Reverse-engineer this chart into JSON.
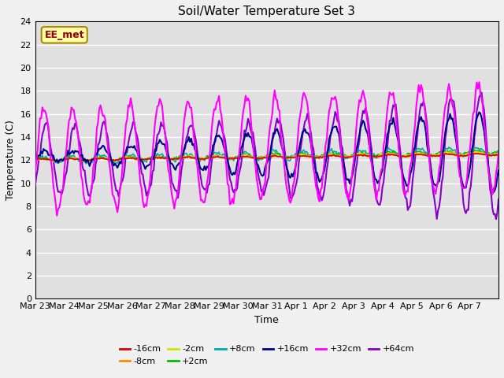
{
  "title": "Soil/Water Temperature Set 3",
  "xlabel": "Time",
  "ylabel": "Temperature (C)",
  "ylim": [
    0,
    24
  ],
  "yticks": [
    0,
    2,
    4,
    6,
    8,
    10,
    12,
    14,
    16,
    18,
    20,
    22,
    24
  ],
  "x_labels": [
    "Mar 23",
    "Mar 24",
    "Mar 25",
    "Mar 26",
    "Mar 27",
    "Mar 28",
    "Mar 29",
    "Mar 30",
    "Mar 31",
    "Apr 1",
    "Apr 2",
    "Apr 3",
    "Apr 4",
    "Apr 5",
    "Apr 6",
    "Apr 7"
  ],
  "annotation_text": "EE_met",
  "annotation_color": "#990000",
  "annotation_bg": "#ffffaa",
  "annotation_border": "#aa8800",
  "bg_color": "#e0e0e0",
  "fig_bg": "#f0f0f0",
  "grid_color": "#ffffff",
  "series": {
    "-16cm": {
      "color": "#dd0000",
      "lw": 1.2,
      "zorder": 5
    },
    "-8cm": {
      "color": "#ff8800",
      "lw": 1.2,
      "zorder": 5
    },
    "-2cm": {
      "color": "#dddd00",
      "lw": 1.2,
      "zorder": 5
    },
    "+2cm": {
      "color": "#00bb00",
      "lw": 1.2,
      "zorder": 5
    },
    "+8cm": {
      "color": "#00aaaa",
      "lw": 1.2,
      "zorder": 5
    },
    "+16cm": {
      "color": "#000088",
      "lw": 1.5,
      "zorder": 6
    },
    "+32cm": {
      "color": "#ff00ff",
      "lw": 1.5,
      "zorder": 7
    },
    "+64cm": {
      "color": "#8800cc",
      "lw": 1.5,
      "zorder": 4
    }
  },
  "legend_order": [
    "-16cm",
    "-8cm",
    "-2cm",
    "+2cm",
    "+8cm",
    "+16cm",
    "+32cm",
    "+64cm"
  ],
  "n_days": 16,
  "pts_per_day": 24,
  "seed": 0
}
